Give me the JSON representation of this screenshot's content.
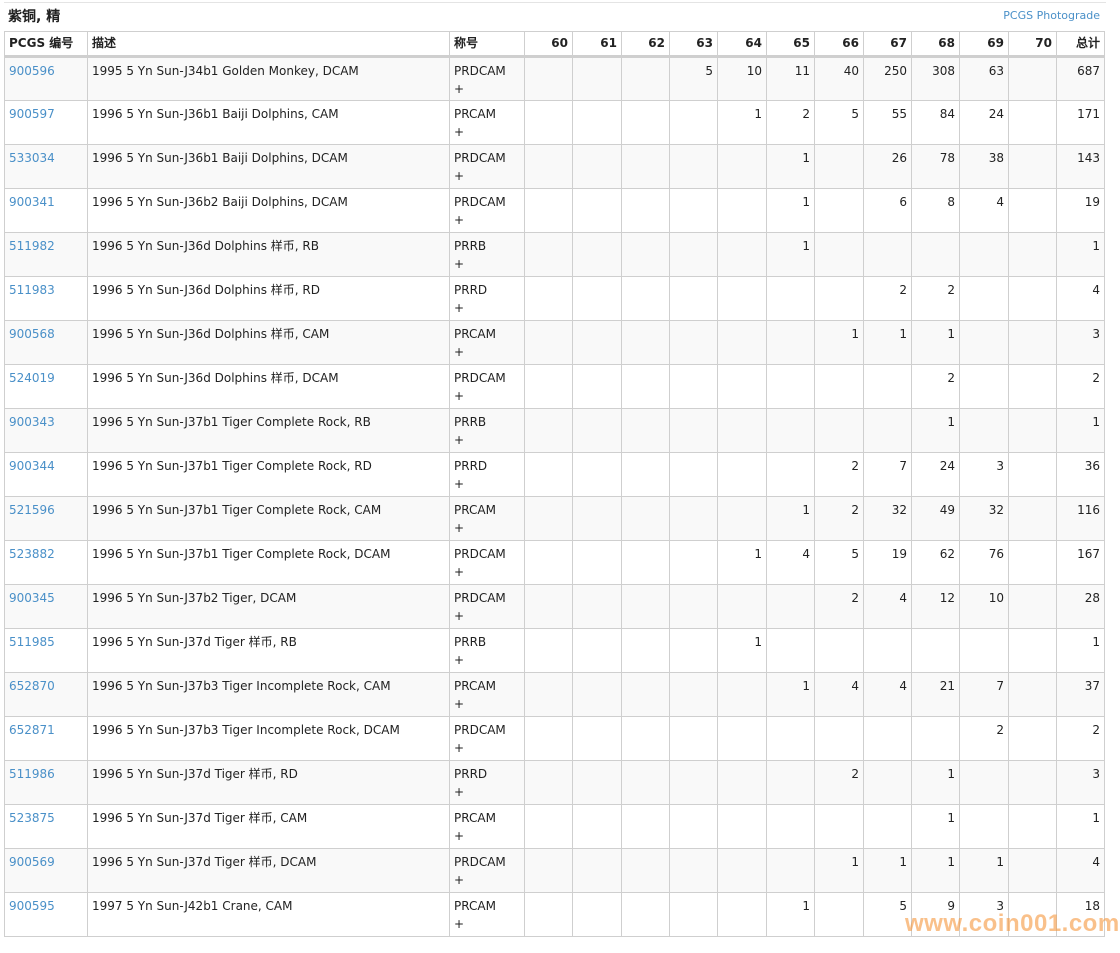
{
  "header": {
    "title": "紫铜, 精",
    "photograde_link": "PCGS Photograde"
  },
  "columns": {
    "code": "PCGS 编号",
    "desc": "描述",
    "designation": "称号",
    "grades": [
      "60",
      "61",
      "62",
      "63",
      "64",
      "65",
      "66",
      "67",
      "68",
      "69",
      "70"
    ],
    "total": "总计"
  },
  "rows": [
    {
      "code": "900596",
      "desc": "1995 5 Yn Sun-J34b1 Golden Monkey, DCAM",
      "des": "PRDCAM",
      "plus": "+",
      "g": [
        "",
        "",
        "",
        "5",
        "10",
        "11",
        "40",
        "250",
        "308",
        "63",
        ""
      ],
      "total": "687"
    },
    {
      "code": "900597",
      "desc": "1996 5 Yn Sun-J36b1 Baiji Dolphins, CAM",
      "des": "PRCAM",
      "plus": "+",
      "g": [
        "",
        "",
        "",
        "",
        "1",
        "2",
        "5",
        "55",
        "84",
        "24",
        ""
      ],
      "total": "171"
    },
    {
      "code": "533034",
      "desc": "1996 5 Yn Sun-J36b1 Baiji Dolphins, DCAM",
      "des": "PRDCAM",
      "plus": "+",
      "g": [
        "",
        "",
        "",
        "",
        "",
        "1",
        "",
        "26",
        "78",
        "38",
        ""
      ],
      "total": "143"
    },
    {
      "code": "900341",
      "desc": "1996 5 Yn Sun-J36b2 Baiji Dolphins, DCAM",
      "des": "PRDCAM",
      "plus": "+",
      "g": [
        "",
        "",
        "",
        "",
        "",
        "1",
        "",
        "6",
        "8",
        "4",
        ""
      ],
      "total": "19"
    },
    {
      "code": "511982",
      "desc": "1996 5 Yn Sun-J36d Dolphins 样币, RB",
      "des": "PRRB",
      "plus": "+",
      "g": [
        "",
        "",
        "",
        "",
        "",
        "1",
        "",
        "",
        "",
        "",
        ""
      ],
      "total": "1"
    },
    {
      "code": "511983",
      "desc": "1996 5 Yn Sun-J36d Dolphins 样币, RD",
      "des": "PRRD",
      "plus": "+",
      "g": [
        "",
        "",
        "",
        "",
        "",
        "",
        "",
        "2",
        "2",
        "",
        ""
      ],
      "total": "4"
    },
    {
      "code": "900568",
      "desc": "1996 5 Yn Sun-J36d Dolphins 样币, CAM",
      "des": "PRCAM",
      "plus": "+",
      "g": [
        "",
        "",
        "",
        "",
        "",
        "",
        "1",
        "1",
        "1",
        "",
        ""
      ],
      "total": "3"
    },
    {
      "code": "524019",
      "desc": "1996 5 Yn Sun-J36d Dolphins 样币, DCAM",
      "des": "PRDCAM",
      "plus": "+",
      "g": [
        "",
        "",
        "",
        "",
        "",
        "",
        "",
        "",
        "2",
        "",
        ""
      ],
      "total": "2"
    },
    {
      "code": "900343",
      "desc": "1996 5 Yn Sun-J37b1 Tiger Complete Rock, RB",
      "des": "PRRB",
      "plus": "+",
      "g": [
        "",
        "",
        "",
        "",
        "",
        "",
        "",
        "",
        "1",
        "",
        ""
      ],
      "total": "1"
    },
    {
      "code": "900344",
      "desc": "1996 5 Yn Sun-J37b1 Tiger Complete Rock, RD",
      "des": "PRRD",
      "plus": "+",
      "g": [
        "",
        "",
        "",
        "",
        "",
        "",
        "2",
        "7",
        "24",
        "3",
        ""
      ],
      "total": "36"
    },
    {
      "code": "521596",
      "desc": "1996 5 Yn Sun-J37b1 Tiger Complete Rock, CAM",
      "des": "PRCAM",
      "plus": "+",
      "g": [
        "",
        "",
        "",
        "",
        "",
        "1",
        "2",
        "32",
        "49",
        "32",
        ""
      ],
      "total": "116"
    },
    {
      "code": "523882",
      "desc": "1996 5 Yn Sun-J37b1 Tiger Complete Rock, DCAM",
      "des": "PRDCAM",
      "plus": "+",
      "g": [
        "",
        "",
        "",
        "",
        "1",
        "4",
        "5",
        "19",
        "62",
        "76",
        ""
      ],
      "total": "167"
    },
    {
      "code": "900345",
      "desc": "1996 5 Yn Sun-J37b2 Tiger, DCAM",
      "des": "PRDCAM",
      "plus": "+",
      "g": [
        "",
        "",
        "",
        "",
        "",
        "",
        "2",
        "4",
        "12",
        "10",
        ""
      ],
      "total": "28"
    },
    {
      "code": "511985",
      "desc": "1996 5 Yn Sun-J37d Tiger 样币, RB",
      "des": "PRRB",
      "plus": "+",
      "g": [
        "",
        "",
        "",
        "",
        "1",
        "",
        "",
        "",
        "",
        "",
        ""
      ],
      "total": "1"
    },
    {
      "code": "652870",
      "desc": "1996 5 Yn Sun-J37b3 Tiger Incomplete Rock, CAM",
      "des": "PRCAM",
      "plus": "+",
      "g": [
        "",
        "",
        "",
        "",
        "",
        "1",
        "4",
        "4",
        "21",
        "7",
        ""
      ],
      "total": "37"
    },
    {
      "code": "652871",
      "desc": "1996 5 Yn Sun-J37b3 Tiger Incomplete Rock, DCAM",
      "des": "PRDCAM",
      "plus": "+",
      "g": [
        "",
        "",
        "",
        "",
        "",
        "",
        "",
        "",
        "",
        "2",
        ""
      ],
      "total": "2"
    },
    {
      "code": "511986",
      "desc": "1996 5 Yn Sun-J37d Tiger 样币, RD",
      "des": "PRRD",
      "plus": "+",
      "g": [
        "",
        "",
        "",
        "",
        "",
        "",
        "2",
        "",
        "1",
        "",
        ""
      ],
      "total": "3"
    },
    {
      "code": "523875",
      "desc": "1996 5 Yn Sun-J37d Tiger 样币, CAM",
      "des": "PRCAM",
      "plus": "+",
      "g": [
        "",
        "",
        "",
        "",
        "",
        "",
        "",
        "",
        "1",
        "",
        ""
      ],
      "total": "1"
    },
    {
      "code": "900569",
      "desc": "1996 5 Yn Sun-J37d Tiger 样币, DCAM",
      "des": "PRDCAM",
      "plus": "+",
      "g": [
        "",
        "",
        "",
        "",
        "",
        "",
        "1",
        "1",
        "1",
        "1",
        ""
      ],
      "total": "4"
    },
    {
      "code": "900595",
      "desc": "1997 5 Yn Sun-J42b1 Crane, CAM",
      "des": "PRCAM",
      "plus": "+",
      "g": [
        "",
        "",
        "",
        "",
        "",
        "1",
        "",
        "5",
        "9",
        "3",
        ""
      ],
      "total": "18"
    }
  ],
  "watermark": "www.coin001.com",
  "colors": {
    "link": "#4a90c8",
    "watermark": "#f5963c"
  }
}
